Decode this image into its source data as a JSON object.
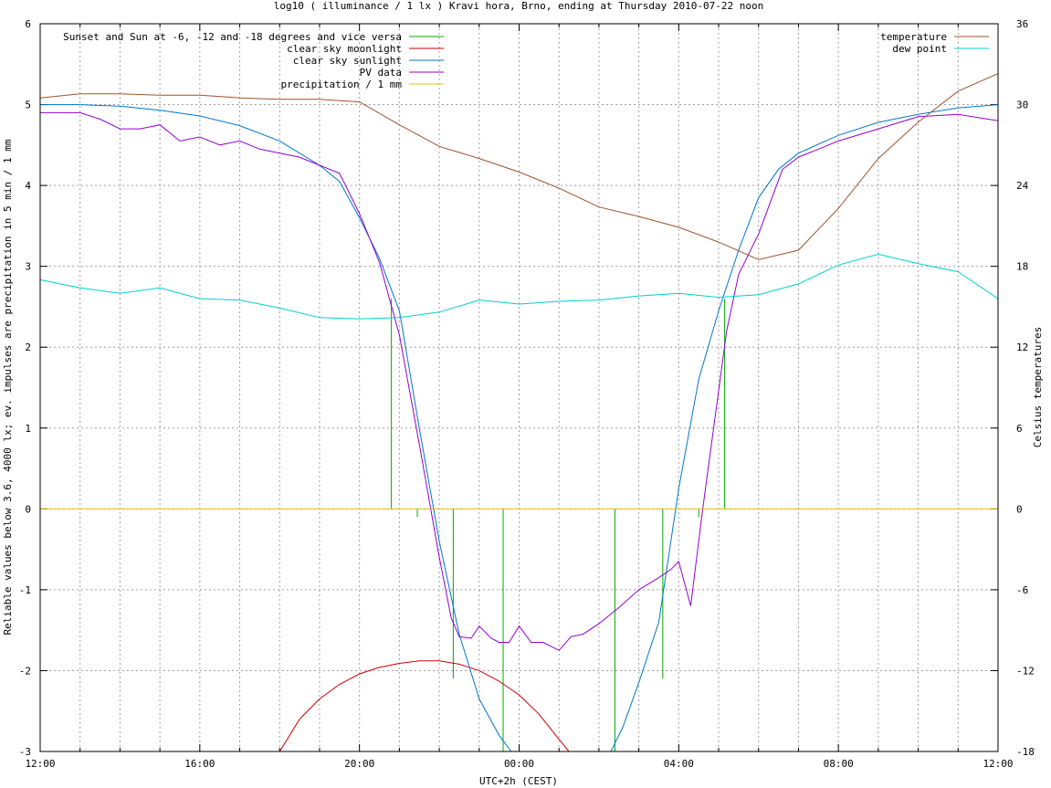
{
  "chart_data": {
    "type": "line",
    "title": "log10 ( illuminance / 1 lx ) Kravi hora, Brno, ending at Thursday 2010-07-22 noon",
    "xlabel": "UTC+2h (CEST)",
    "ylabel": "Reliable values below 3.6, 4000 lx; ev. impulses are precipitation in 5 min / 1 mm",
    "y2label": "Celsius temperatures",
    "x_unit": "hours since 12:00 (CEST)",
    "xlim": [
      0,
      24
    ],
    "ylim": [
      -3,
      6
    ],
    "y2lim": [
      -18,
      36
    ],
    "grid": true,
    "x_ticks": [
      {
        "x": 0,
        "label": "12:00"
      },
      {
        "x": 4,
        "label": "16:00"
      },
      {
        "x": 8,
        "label": "20:00"
      },
      {
        "x": 12,
        "label": "00:00"
      },
      {
        "x": 16,
        "label": "04:00"
      },
      {
        "x": 20,
        "label": "08:00"
      },
      {
        "x": 24,
        "label": "12:00"
      }
    ],
    "y_ticks": [
      "-3",
      "-2",
      "-1",
      "0",
      "1",
      "2",
      "3",
      "4",
      "5",
      "6"
    ],
    "y2_ticks": [
      "-18",
      "-12",
      "-6",
      "0",
      "6",
      "12",
      "18",
      "24",
      "30",
      "36"
    ],
    "legend_left": [
      {
        "name": "Sunset and Sun at -6, -12 and -18 degrees and vice versa",
        "color": "#00aa00"
      },
      {
        "name": "clear sky moonlight",
        "color": "#cc0000"
      },
      {
        "name": "clear sky sunlight",
        "color": "#0077cc"
      },
      {
        "name": "PV data",
        "color": "#9400d3"
      },
      {
        "name": "precipitation / 1 mm",
        "color": "#e6c300"
      }
    ],
    "legend_right": [
      {
        "name": "temperature",
        "color": "#a0522d"
      },
      {
        "name": "dew point",
        "color": "#00d0d0"
      }
    ],
    "series": [
      {
        "name": "Sunset and Sun at -6, -12 and -18 degrees and vice versa",
        "kind": "impulses",
        "axis": "y",
        "x": [
          8.8,
          9.45,
          10.35,
          11.6,
          14.4,
          15.6,
          16.5,
          17.15
        ],
        "values": [
          2.6,
          -0.1,
          -2.1,
          -3.0,
          -3.0,
          -2.1,
          -0.1,
          2.6
        ]
      },
      {
        "name": "clear sky moonlight",
        "axis": "y",
        "x": [
          6.0,
          6.5,
          7.0,
          7.5,
          8.0,
          8.5,
          9.0,
          9.5,
          10.0,
          10.5,
          11.0,
          11.5,
          12.0,
          12.5,
          13.0,
          13.25
        ],
        "values": [
          -3.0,
          -2.6,
          -2.35,
          -2.17,
          -2.04,
          -1.96,
          -1.91,
          -1.88,
          -1.88,
          -1.92,
          -2.0,
          -2.13,
          -2.3,
          -2.54,
          -2.85,
          -3.0
        ]
      },
      {
        "name": "clear sky sunlight",
        "axis": "y",
        "x": [
          0,
          1,
          2,
          3,
          4,
          5,
          6,
          7,
          7.5,
          8,
          8.5,
          9,
          9.5,
          10,
          10.5,
          11,
          11.5,
          11.8,
          14.3,
          14.6,
          15,
          15.5,
          16,
          16.5,
          17,
          17.5,
          18,
          18.5,
          19,
          20,
          21,
          22,
          23,
          24
        ],
        "values": [
          5.0,
          5.0,
          4.98,
          4.93,
          4.86,
          4.74,
          4.55,
          4.25,
          4.05,
          3.6,
          3.1,
          2.45,
          1.0,
          -0.4,
          -1.55,
          -2.35,
          -2.8,
          -3.0,
          -3.0,
          -2.7,
          -2.15,
          -1.4,
          0.25,
          1.6,
          2.45,
          3.2,
          3.85,
          4.2,
          4.4,
          4.62,
          4.78,
          4.88,
          4.96,
          5.0
        ]
      },
      {
        "name": "PV data",
        "axis": "y",
        "x": [
          0,
          0.5,
          1,
          1.5,
          2,
          2.5,
          3,
          3.5,
          4,
          4.5,
          5,
          5.5,
          6,
          6.5,
          7,
          7.5,
          8,
          8.5,
          9,
          9.5,
          10,
          10.3,
          10.5,
          10.8,
          11,
          11.3,
          11.5,
          11.75,
          12,
          12.3,
          12.6,
          13,
          13.3,
          13.6,
          14,
          14.5,
          15,
          15.5,
          15.8,
          16,
          16.3,
          16.6,
          16.9,
          17.2,
          17.5,
          18,
          18.3,
          18.6,
          19,
          19.5,
          20,
          21,
          22,
          23,
          24
        ],
        "values": [
          4.9,
          4.9,
          4.9,
          4.82,
          4.7,
          4.7,
          4.75,
          4.55,
          4.6,
          4.5,
          4.55,
          4.45,
          4.4,
          4.35,
          4.25,
          4.15,
          3.65,
          3.05,
          2.15,
          0.8,
          -0.6,
          -1.35,
          -1.58,
          -1.6,
          -1.45,
          -1.6,
          -1.65,
          -1.65,
          -1.45,
          -1.65,
          -1.65,
          -1.75,
          -1.58,
          -1.55,
          -1.42,
          -1.22,
          -1.0,
          -0.85,
          -0.75,
          -0.65,
          -1.2,
          0.0,
          1.1,
          2.2,
          2.9,
          3.4,
          3.8,
          4.2,
          4.35,
          4.45,
          4.55,
          4.7,
          4.85,
          4.88,
          4.8
        ]
      },
      {
        "name": "precipitation / 1 mm",
        "axis": "y",
        "x": [
          0,
          24
        ],
        "values": [
          0,
          0
        ]
      },
      {
        "name": "temperature",
        "axis": "y2",
        "x": [
          0,
          1,
          2,
          3,
          4,
          5,
          6,
          7,
          8,
          9,
          10,
          11,
          12,
          13,
          14,
          15,
          16,
          17,
          18,
          19,
          20,
          21,
          22,
          23,
          24
        ],
        "values": [
          30.5,
          30.8,
          30.8,
          30.7,
          30.7,
          30.5,
          30.4,
          30.4,
          30.2,
          28.5,
          26.9,
          26.0,
          25.0,
          23.8,
          22.4,
          21.7,
          20.9,
          19.8,
          18.5,
          19.2,
          22.3,
          26.0,
          28.7,
          31.0,
          32.3
        ]
      },
      {
        "name": "dew point",
        "axis": "y2",
        "x": [
          0,
          1,
          2,
          3,
          4,
          5,
          6,
          7,
          8,
          9,
          10,
          11,
          12,
          13,
          14,
          15,
          16,
          17,
          18,
          19,
          20,
          21,
          22,
          23,
          24
        ],
        "values": [
          17.0,
          16.4,
          16.0,
          16.4,
          15.6,
          15.5,
          14.9,
          14.2,
          14.1,
          14.2,
          14.6,
          15.5,
          15.2,
          15.4,
          15.5,
          15.8,
          16.0,
          15.7,
          15.9,
          16.7,
          18.1,
          18.9,
          18.2,
          17.6,
          15.6
        ]
      }
    ]
  }
}
